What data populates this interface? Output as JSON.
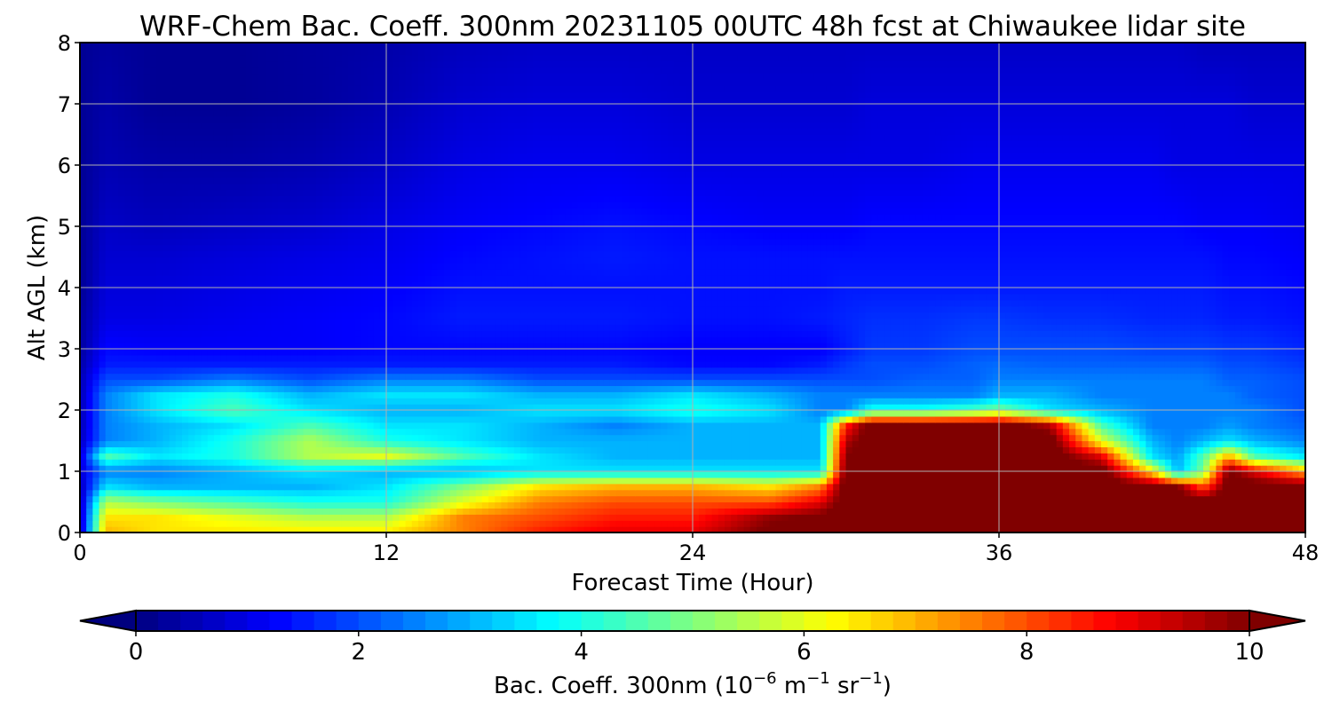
{
  "chart_data": {
    "type": "heatmap",
    "title": "WRF-Chem Bac. Coeff. 300nm  20231105 00UTC 48h fcst at Chiwaukee lidar site",
    "xlabel": "Forecast Time (Hour)",
    "ylabel": "Alt AGL (km)",
    "xlim": [
      0,
      48
    ],
    "ylim": [
      0,
      8
    ],
    "xticks": [
      "0",
      "12",
      "24",
      "36",
      "48"
    ],
    "yticks": [
      "0",
      "1",
      "2",
      "3",
      "4",
      "5",
      "6",
      "7",
      "8"
    ],
    "grid": true,
    "colormap": "jet",
    "colorbar": {
      "label_prefix": "Bac. Coeff. 300nm  (10",
      "exp1": "−6",
      "mid": " m",
      "exp2": "−1",
      "mid2": " sr",
      "exp3": "−1",
      "suffix": ")",
      "range": [
        0,
        10
      ],
      "ticks": [
        "0",
        "2",
        "4",
        "6",
        "8",
        "10"
      ],
      "extend": "both"
    },
    "x": [
      0,
      1,
      3,
      6,
      9,
      12,
      15,
      18,
      21,
      24,
      27,
      29,
      30,
      31,
      33,
      35,
      36,
      38,
      40,
      42,
      43,
      44,
      45,
      46,
      48
    ],
    "y": [
      0,
      0.25,
      0.5,
      0.75,
      1.0,
      1.25,
      1.5,
      1.75,
      2.0,
      2.25,
      2.5,
      2.75,
      3.0,
      3.5,
      4.0,
      4.5,
      5.0,
      6.0,
      7.0,
      8.0
    ],
    "z": [
      [
        0.5,
        7.0,
        6.5,
        6.5,
        6.5,
        6.5,
        7.5,
        8.5,
        9.0,
        9.0,
        10.2,
        10.2,
        10.5,
        10.5,
        10.5,
        10.5,
        10.5,
        10.5,
        10.5,
        10.5,
        10.5,
        10.5,
        10.5,
        10.5,
        10.5
      ],
      [
        0.5,
        6.5,
        6.5,
        6.0,
        5.5,
        5.5,
        7.5,
        8.0,
        8.5,
        8.5,
        9.8,
        10.2,
        10.5,
        10.5,
        10.5,
        10.5,
        10.5,
        10.5,
        10.5,
        10.5,
        10.5,
        10.5,
        10.5,
        10.5,
        10.5
      ],
      [
        0.5,
        5.5,
        5.0,
        4.5,
        4.0,
        4.0,
        6.0,
        7.5,
        8.0,
        8.0,
        8.0,
        9.0,
        10.5,
        10.5,
        10.5,
        10.5,
        10.5,
        10.5,
        10.5,
        10.5,
        10.5,
        10.5,
        10.5,
        10.5,
        10.5
      ],
      [
        0.5,
        3.5,
        3.0,
        3.0,
        3.0,
        3.5,
        5.0,
        6.5,
        7.0,
        7.0,
        6.5,
        7.5,
        10.5,
        10.5,
        10.5,
        10.5,
        10.5,
        10.5,
        10.5,
        10.5,
        10.0,
        8.0,
        10.5,
        10.5,
        10.5
      ],
      [
        0.8,
        2.5,
        2.5,
        3.0,
        3.5,
        3.0,
        3.0,
        3.5,
        3.5,
        3.5,
        3.5,
        3.5,
        10.3,
        10.5,
        10.5,
        10.5,
        10.5,
        10.5,
        10.5,
        6.5,
        3.0,
        5.0,
        10.2,
        9.0,
        7.0
      ],
      [
        0.8,
        4.5,
        3.5,
        4.0,
        5.5,
        6.0,
        4.5,
        3.5,
        3.0,
        3.0,
        3.0,
        3.0,
        10.0,
        10.5,
        10.5,
        10.5,
        10.5,
        10.5,
        9.0,
        3.5,
        2.8,
        4.5,
        7.0,
        4.5,
        3.5
      ],
      [
        0.6,
        2.5,
        3.0,
        4.0,
        5.5,
        4.0,
        3.5,
        3.0,
        3.0,
        3.0,
        3.0,
        3.0,
        9.5,
        10.5,
        10.5,
        10.5,
        10.5,
        10.5,
        6.0,
        3.0,
        2.5,
        3.0,
        3.5,
        3.0,
        2.5
      ],
      [
        0.5,
        2.5,
        3.0,
        3.5,
        4.5,
        3.5,
        3.5,
        3.0,
        2.5,
        3.0,
        3.0,
        3.0,
        8.5,
        10.5,
        10.5,
        10.5,
        10.5,
        9.5,
        4.5,
        2.5,
        2.5,
        2.5,
        2.8,
        2.5,
        2.2
      ],
      [
        0.5,
        2.5,
        3.5,
        4.5,
        3.5,
        3.0,
        3.0,
        3.5,
        3.5,
        4.0,
        3.5,
        2.5,
        2.5,
        4.0,
        4.0,
        4.5,
        5.0,
        3.5,
        3.0,
        2.5,
        2.5,
        2.5,
        2.5,
        2.5,
        2.0
      ],
      [
        0.5,
        2.5,
        3.5,
        4.0,
        3.0,
        3.5,
        3.5,
        3.0,
        3.0,
        3.5,
        3.0,
        2.5,
        2.5,
        2.5,
        2.5,
        2.5,
        3.0,
        3.0,
        2.5,
        2.5,
        2.5,
        2.5,
        2.5,
        2.2,
        2.0
      ],
      [
        0.5,
        2.0,
        2.0,
        2.5,
        2.0,
        2.5,
        2.5,
        2.0,
        2.0,
        2.0,
        2.0,
        2.0,
        2.0,
        2.0,
        2.2,
        2.2,
        2.5,
        2.5,
        2.5,
        2.5,
        2.5,
        2.5,
        2.2,
        2.2,
        2.0
      ],
      [
        0.4,
        1.5,
        1.5,
        1.5,
        1.5,
        1.5,
        1.5,
        1.5,
        1.5,
        1.3,
        1.3,
        1.5,
        1.8,
        2.0,
        2.0,
        2.2,
        2.3,
        2.2,
        2.2,
        2.2,
        2.2,
        2.2,
        2.0,
        2.0,
        1.8
      ],
      [
        0.3,
        1.3,
        1.2,
        1.2,
        1.2,
        1.3,
        1.3,
        1.3,
        1.3,
        1.2,
        1.2,
        1.2,
        1.5,
        1.8,
        1.8,
        2.0,
        2.0,
        2.0,
        2.0,
        1.9,
        1.9,
        1.9,
        1.8,
        1.8,
        1.6
      ],
      [
        0.3,
        1.0,
        1.0,
        1.1,
        1.2,
        1.3,
        1.5,
        1.5,
        1.5,
        1.4,
        1.4,
        1.5,
        1.6,
        1.7,
        1.7,
        1.8,
        1.8,
        1.7,
        1.7,
        1.6,
        1.6,
        1.6,
        1.5,
        1.5,
        1.4
      ],
      [
        0.2,
        0.9,
        0.9,
        1.0,
        1.1,
        1.2,
        1.4,
        1.4,
        1.4,
        1.4,
        1.4,
        1.4,
        1.5,
        1.5,
        1.5,
        1.5,
        1.5,
        1.5,
        1.5,
        1.5,
        1.5,
        1.5,
        1.4,
        1.4,
        1.3
      ],
      [
        0.2,
        0.8,
        0.8,
        0.9,
        1.0,
        1.1,
        1.3,
        1.4,
        1.5,
        1.4,
        1.4,
        1.4,
        1.4,
        1.4,
        1.4,
        1.4,
        1.4,
        1.4,
        1.4,
        1.4,
        1.4,
        1.4,
        1.3,
        1.3,
        1.2
      ],
      [
        0.2,
        0.7,
        0.6,
        0.7,
        0.8,
        1.0,
        1.2,
        1.3,
        1.4,
        1.3,
        1.2,
        1.2,
        1.2,
        1.3,
        1.3,
        1.3,
        1.3,
        1.3,
        1.3,
        1.3,
        1.3,
        1.2,
        1.2,
        1.2,
        1.1
      ],
      [
        0.2,
        0.5,
        0.4,
        0.4,
        0.5,
        0.7,
        1.0,
        1.1,
        1.1,
        1.0,
        1.0,
        1.0,
        1.0,
        1.0,
        1.0,
        1.1,
        1.1,
        1.1,
        1.1,
        1.1,
        1.0,
        1.0,
        1.0,
        1.0,
        1.0
      ],
      [
        0.2,
        0.4,
        0.2,
        0.2,
        0.3,
        0.5,
        0.8,
        0.9,
        0.9,
        0.8,
        0.8,
        0.8,
        0.8,
        0.9,
        0.9,
        0.9,
        0.9,
        0.9,
        0.9,
        0.9,
        0.9,
        0.9,
        0.9,
        0.8,
        0.8
      ],
      [
        0.2,
        0.3,
        0.2,
        0.2,
        0.3,
        0.4,
        0.6,
        0.7,
        0.7,
        0.7,
        0.7,
        0.7,
        0.7,
        0.7,
        0.7,
        0.7,
        0.7,
        0.7,
        0.7,
        0.7,
        0.7,
        0.6,
        0.6,
        0.6,
        0.6
      ]
    ]
  }
}
